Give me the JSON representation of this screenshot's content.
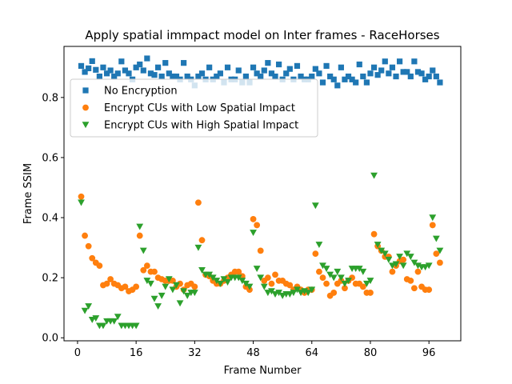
{
  "chart_data": {
    "type": "scatter",
    "title": "Apply spatial immpact model on Inter frames - RaceHorses",
    "xlabel": "Frame Number",
    "ylabel": "Frame SSIM",
    "xlim": [
      -3.7,
      104.7
    ],
    "ylim": [
      -0.01,
      0.97
    ],
    "xticks": [
      0,
      16,
      32,
      48,
      64,
      80,
      96
    ],
    "yticks": [
      0.0,
      0.2,
      0.4,
      0.6,
      0.8
    ],
    "ytick_labels": [
      "0.0",
      "0.2",
      "0.4",
      "0.6",
      "0.8"
    ],
    "legend_position": "upper-left",
    "grid": false,
    "series": [
      {
        "name": "No Encryption",
        "marker": "square",
        "color": "#1f77b4",
        "x": [
          1,
          2,
          3,
          4,
          5,
          6,
          7,
          8,
          9,
          10,
          11,
          12,
          13,
          14,
          15,
          16,
          17,
          18,
          19,
          20,
          21,
          22,
          23,
          24,
          25,
          26,
          27,
          28,
          29,
          30,
          31,
          32,
          33,
          34,
          35,
          36,
          37,
          38,
          39,
          40,
          41,
          42,
          43,
          44,
          45,
          46,
          47,
          48,
          49,
          50,
          51,
          52,
          53,
          54,
          55,
          56,
          57,
          58,
          59,
          60,
          61,
          62,
          63,
          64,
          65,
          66,
          67,
          68,
          69,
          70,
          71,
          72,
          73,
          74,
          75,
          76,
          77,
          78,
          79,
          80,
          81,
          82,
          83,
          84,
          85,
          86,
          87,
          88,
          89,
          90,
          91,
          92,
          93,
          94,
          95,
          96,
          97,
          98,
          99
        ],
        "y": [
          0.905,
          0.885,
          0.897,
          0.921,
          0.892,
          0.87,
          0.9,
          0.88,
          0.89,
          0.87,
          0.88,
          0.92,
          0.89,
          0.88,
          0.86,
          0.9,
          0.91,
          0.89,
          0.93,
          0.88,
          0.875,
          0.9,
          0.87,
          0.915,
          0.88,
          0.87,
          0.87,
          0.86,
          0.915,
          0.87,
          0.86,
          0.84,
          0.87,
          0.88,
          0.86,
          0.9,
          0.86,
          0.87,
          0.88,
          0.85,
          0.9,
          0.86,
          0.86,
          0.89,
          0.85,
          0.87,
          0.85,
          0.9,
          0.88,
          0.87,
          0.89,
          0.915,
          0.88,
          0.87,
          0.91,
          0.86,
          0.88,
          0.895,
          0.86,
          0.905,
          0.87,
          0.86,
          0.86,
          0.87,
          0.895,
          0.88,
          0.85,
          0.905,
          0.87,
          0.86,
          0.84,
          0.9,
          0.86,
          0.87,
          0.86,
          0.85,
          0.91,
          0.87,
          0.85,
          0.88,
          0.9,
          0.875,
          0.89,
          0.92,
          0.88,
          0.9,
          0.87,
          0.92,
          0.885,
          0.885,
          0.87,
          0.92,
          0.885,
          0.88,
          0.86,
          0.87,
          0.89,
          0.87,
          0.85
        ]
      },
      {
        "name": "Encrypt CUs with Low Spatial Impact",
        "marker": "circle",
        "color": "#ff7f0e",
        "x": [
          1,
          2,
          3,
          4,
          5,
          6,
          7,
          8,
          9,
          10,
          11,
          12,
          13,
          14,
          15,
          16,
          17,
          18,
          19,
          20,
          21,
          22,
          23,
          24,
          25,
          26,
          27,
          28,
          29,
          30,
          31,
          32,
          33,
          34,
          35,
          36,
          37,
          38,
          39,
          40,
          41,
          42,
          43,
          44,
          45,
          46,
          47,
          48,
          49,
          50,
          51,
          52,
          53,
          54,
          55,
          56,
          57,
          58,
          59,
          60,
          61,
          62,
          63,
          64,
          65,
          66,
          67,
          68,
          69,
          70,
          71,
          72,
          73,
          74,
          75,
          76,
          77,
          78,
          79,
          80,
          81,
          82,
          83,
          84,
          85,
          86,
          87,
          88,
          89,
          90,
          91,
          92,
          93,
          94,
          95,
          96,
          97,
          98,
          99
        ],
        "y": [
          0.47,
          0.34,
          0.305,
          0.265,
          0.25,
          0.24,
          0.175,
          0.18,
          0.195,
          0.18,
          0.175,
          0.165,
          0.17,
          0.155,
          0.16,
          0.17,
          0.34,
          0.225,
          0.24,
          0.22,
          0.22,
          0.2,
          0.195,
          0.19,
          0.19,
          0.19,
          0.17,
          0.18,
          0.16,
          0.175,
          0.18,
          0.17,
          0.45,
          0.325,
          0.21,
          0.205,
          0.19,
          0.18,
          0.18,
          0.19,
          0.2,
          0.21,
          0.22,
          0.22,
          0.205,
          0.17,
          0.16,
          0.395,
          0.375,
          0.29,
          0.19,
          0.2,
          0.18,
          0.21,
          0.19,
          0.19,
          0.18,
          0.175,
          0.16,
          0.17,
          0.16,
          0.15,
          0.16,
          0.16,
          0.28,
          0.22,
          0.2,
          0.18,
          0.14,
          0.15,
          0.18,
          0.19,
          0.165,
          0.19,
          0.2,
          0.18,
          0.18,
          0.17,
          0.15,
          0.15,
          0.345,
          0.305,
          0.29,
          0.27,
          0.27,
          0.22,
          0.24,
          0.255,
          0.26,
          0.195,
          0.19,
          0.165,
          0.22,
          0.17,
          0.16,
          0.16,
          0.375,
          0.28,
          0.25
        ]
      },
      {
        "name": "Encrypt CUs with High Spatial Impact",
        "marker": "triangle-down",
        "color": "#2ca02c",
        "x": [
          1,
          2,
          3,
          4,
          5,
          6,
          7,
          8,
          9,
          10,
          11,
          12,
          13,
          14,
          15,
          16,
          17,
          18,
          19,
          20,
          21,
          22,
          23,
          24,
          25,
          26,
          27,
          28,
          29,
          30,
          31,
          32,
          33,
          34,
          35,
          36,
          37,
          38,
          39,
          40,
          41,
          42,
          43,
          44,
          45,
          46,
          47,
          48,
          49,
          50,
          51,
          52,
          53,
          54,
          55,
          56,
          57,
          58,
          59,
          60,
          61,
          62,
          63,
          64,
          65,
          66,
          67,
          68,
          69,
          70,
          71,
          72,
          73,
          74,
          75,
          76,
          77,
          78,
          79,
          80,
          81,
          82,
          83,
          84,
          85,
          86,
          87,
          88,
          89,
          90,
          91,
          92,
          93,
          94,
          95,
          96,
          97,
          98,
          99
        ],
        "y": [
          0.45,
          0.09,
          0.105,
          0.06,
          0.065,
          0.04,
          0.04,
          0.055,
          0.055,
          0.055,
          0.07,
          0.04,
          0.04,
          0.04,
          0.04,
          0.04,
          0.37,
          0.29,
          0.19,
          0.18,
          0.13,
          0.105,
          0.14,
          0.17,
          0.195,
          0.16,
          0.175,
          0.115,
          0.155,
          0.14,
          0.15,
          0.15,
          0.3,
          0.225,
          0.21,
          0.21,
          0.2,
          0.19,
          0.18,
          0.195,
          0.185,
          0.2,
          0.2,
          0.2,
          0.19,
          0.18,
          0.17,
          0.35,
          0.23,
          0.2,
          0.17,
          0.15,
          0.155,
          0.145,
          0.15,
          0.14,
          0.145,
          0.145,
          0.15,
          0.16,
          0.15,
          0.155,
          0.15,
          0.16,
          0.44,
          0.31,
          0.24,
          0.23,
          0.21,
          0.2,
          0.22,
          0.2,
          0.18,
          0.19,
          0.23,
          0.23,
          0.23,
          0.22,
          0.18,
          0.19,
          0.54,
          0.31,
          0.29,
          0.28,
          0.26,
          0.24,
          0.245,
          0.27,
          0.24,
          0.28,
          0.27,
          0.25,
          0.24,
          0.235,
          0.235,
          0.24,
          0.4,
          0.33,
          0.29
        ]
      }
    ]
  }
}
